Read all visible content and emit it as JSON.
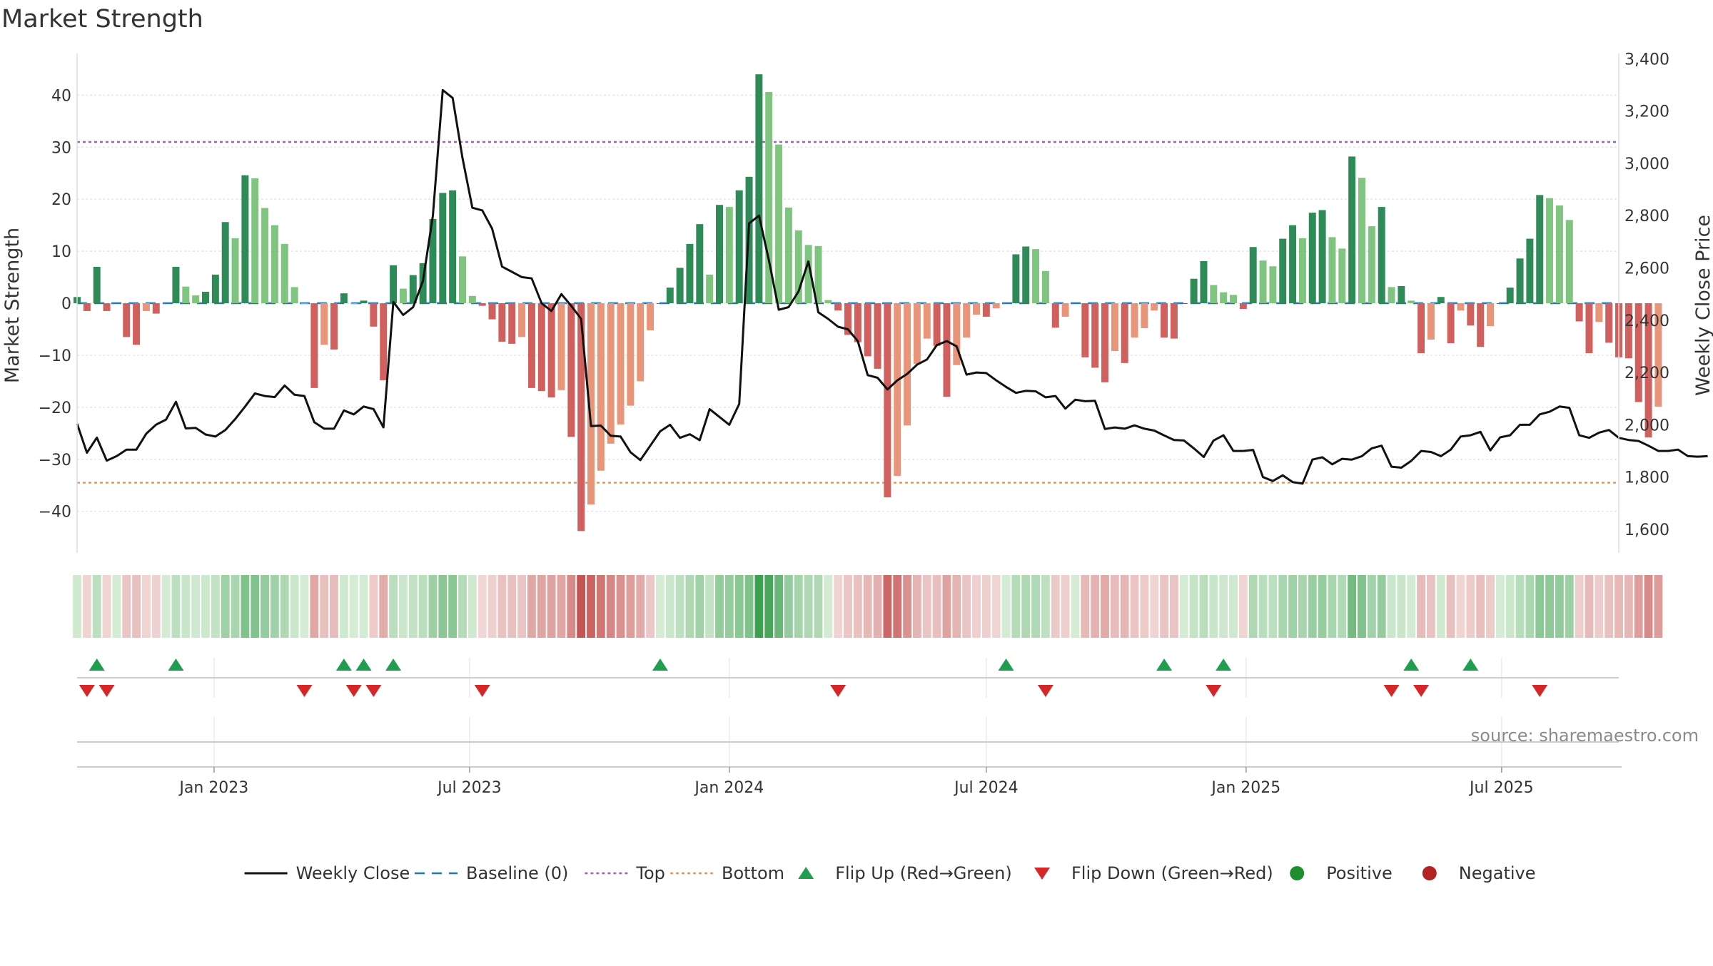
{
  "chart_data": {
    "type": "bar",
    "title": "Market Strength",
    "ylabel": "Market Strength",
    "y2label": "Weekly Close Price",
    "ylim": [
      -48,
      48
    ],
    "y2lim": [
      1510,
      3420
    ],
    "yticks": [
      -40,
      -30,
      -20,
      -10,
      0,
      10,
      20,
      30,
      40
    ],
    "y2ticks": [
      1600,
      1800,
      2000,
      2200,
      2400,
      2600,
      2800,
      3000,
      3200,
      3400
    ],
    "y2tick_labels": [
      "1,600",
      "1,800",
      "2,000",
      "2,200",
      "2,400",
      "2,600",
      "2,800",
      "3,000",
      "3,200",
      "3,400"
    ],
    "top_line": 31,
    "bottom_line": -34.5,
    "baseline": 0,
    "x_range": [
      "2022-09-26",
      "2025-09-22"
    ],
    "xticks": [
      {
        "date": "2023-01-01",
        "label": "Jan 2023"
      },
      {
        "date": "2023-07-01",
        "label": "Jul 2023"
      },
      {
        "date": "2024-01-01",
        "label": "Jan 2024"
      },
      {
        "date": "2024-07-01",
        "label": "Jul 2024"
      },
      {
        "date": "2025-01-01",
        "label": "Jan 2025"
      },
      {
        "date": "2025-07-01",
        "label": "Jul 2025"
      }
    ],
    "weeks_start": "2022-09-26",
    "weeks_interval_days": 7,
    "series": [
      {
        "name": "Market Strength",
        "values": [
          1.2,
          -1.5,
          7.0,
          -1.5,
          0.0,
          -6.5,
          -8.0,
          -1.5,
          -2.0,
          0.0,
          7.0,
          3.2,
          1.5,
          2.2,
          5.5,
          15.6,
          12.5,
          24.6,
          24.0,
          18.3,
          15.0,
          11.4,
          3.1,
          0.0,
          -16.3,
          -8.0,
          -8.9,
          1.9,
          0.0,
          0.5,
          -4.5,
          -14.8,
          7.3,
          2.8,
          5.4,
          7.7,
          16.2,
          21.2,
          21.7,
          9.0,
          1.4,
          -0.5,
          -3.1,
          -7.4,
          -7.8,
          -6.5,
          -16.3,
          -16.9,
          -18.1,
          -16.7,
          -25.7,
          -43.8,
          -38.7,
          -32.2,
          -27.0,
          -23.3,
          -19.7,
          -15.0,
          -5.2,
          0.0,
          3.0,
          6.8,
          11.4,
          15.2,
          5.5,
          18.9,
          18.5,
          21.7,
          24.3,
          44.0,
          40.6,
          30.5,
          18.4,
          14.0,
          11.2,
          11.0,
          0.6,
          -1.4,
          -6.1,
          -7.5,
          -10.2,
          -12.6,
          -37.3,
          -33.2,
          -23.5,
          -11.7,
          -6.8,
          -8.2,
          -18.0,
          -11.9,
          -6.6,
          -2.2,
          -2.6,
          -1.0,
          0.0,
          9.4,
          10.9,
          10.4,
          6.2,
          -4.7,
          -2.6,
          0.0,
          -10.4,
          -12.4,
          -15.2,
          -9.2,
          -11.5,
          -6.6,
          -4.8,
          -1.4,
          -6.6,
          -6.8,
          0.0,
          4.7,
          8.1,
          3.5,
          2.1,
          1.6,
          -1.1,
          10.8,
          8.2,
          7.1,
          12.4,
          15.0,
          12.5,
          17.4,
          17.9,
          12.7,
          10.5,
          28.2,
          24.1,
          14.8,
          18.5,
          3.1,
          3.3,
          0.5,
          -9.6,
          -7.0,
          1.2,
          -7.7,
          -1.4,
          -4.3,
          -8.4,
          -4.4,
          0.0,
          3.0,
          8.6,
          12.4,
          20.8,
          20.2,
          18.8,
          16.0,
          -3.5,
          -9.6,
          -3.6,
          -7.6,
          -10.4,
          -10.6,
          -19.0,
          -25.8,
          -19.9
        ]
      },
      {
        "name": "Weekly Close",
        "values": [
          2004,
          1893,
          1951,
          1863,
          1880,
          1905,
          1905,
          1966,
          2001,
          2020,
          2088,
          1986,
          1988,
          1963,
          1955,
          1980,
          2022,
          2070,
          2120,
          2110,
          2106,
          2150,
          2115,
          2110,
          2010,
          1985,
          1985,
          2055,
          2040,
          2070,
          2060,
          1990,
          2470,
          2420,
          2450,
          2550,
          2800,
          3280,
          3250,
          3020,
          2830,
          2820,
          2750,
          2605,
          2585,
          2565,
          2560,
          2465,
          2435,
          2500,
          2455,
          2405,
          1995,
          1997,
          1958,
          1955,
          1895,
          1865,
          1920,
          1975,
          2000,
          1950,
          1964,
          1941,
          2060,
          2030,
          2000,
          2080,
          2770,
          2800,
          2630,
          2440,
          2450,
          2510,
          2625,
          2430,
          2405,
          2375,
          2365,
          2320,
          2190,
          2180,
          2135,
          2170,
          2195,
          2230,
          2250,
          2305,
          2320,
          2300,
          2192,
          2200,
          2198,
          2170,
          2145,
          2122,
          2130,
          2128,
          2105,
          2110,
          2062,
          2096,
          2090,
          2092,
          1984,
          1990,
          1985,
          1998,
          1985,
          1978,
          1959,
          1942,
          1940,
          1910,
          1877,
          1940,
          1960,
          1900,
          1900,
          1904,
          1800,
          1785,
          1807,
          1781,
          1775,
          1867,
          1876,
          1849,
          1870,
          1867,
          1880,
          1910,
          1920,
          1840,
          1836,
          1862,
          1900,
          1896,
          1880,
          1905,
          1955,
          1960,
          1973,
          1902,
          1952,
          1960,
          2000,
          2000,
          2040,
          2050,
          2070,
          2065,
          1960,
          1950,
          1970,
          1980,
          1950,
          1942,
          1938,
          1920,
          1900,
          1900,
          1905,
          1880,
          1878,
          1880
        ]
      }
    ],
    "flip_up_weeks": [
      2,
      10,
      27,
      29,
      32,
      59,
      94,
      110,
      116,
      135,
      141
    ],
    "flip_down_weeks": [
      1,
      3,
      23,
      28,
      30,
      41,
      77,
      98,
      115,
      133,
      136,
      148
    ],
    "legend": {
      "placement": "bottom-center",
      "items": [
        {
          "label": "Weekly Close",
          "marker": "solid-line",
          "color": "#111111"
        },
        {
          "label": "Baseline (0)",
          "marker": "dashed-line",
          "color": "#1f77b4"
        },
        {
          "label": "Top",
          "marker": "dotted-line",
          "color": "#9467bd"
        },
        {
          "label": "Bottom",
          "marker": "dotted-line",
          "color": "#f0955a"
        },
        {
          "label": "Flip Up (Red→Green)",
          "marker": "triangle-up",
          "color": "#1f9e50"
        },
        {
          "label": "Flip Down (Green→Red)",
          "marker": "triangle-down",
          "color": "#d62728"
        },
        {
          "label": "Positive",
          "marker": "circle",
          "color": "#1f8f2e"
        },
        {
          "label": "Negative",
          "marker": "circle",
          "color": "#b22222"
        }
      ]
    },
    "grid": true,
    "source_text": "source: sharemaestro.com"
  },
  "colors": {
    "pos_strong": "#2e8b57",
    "pos_light": "#7fc47f",
    "neg_strong": "#d0605e",
    "neg_light": "#e8957a",
    "price_line": "#111111",
    "baseline": "#1f77b4",
    "top_line": "#9467bd",
    "bottom_line": "#f0955a",
    "flip_up": "#1f9e50",
    "flip_down": "#d62728",
    "grid": "#e6e6e6"
  }
}
